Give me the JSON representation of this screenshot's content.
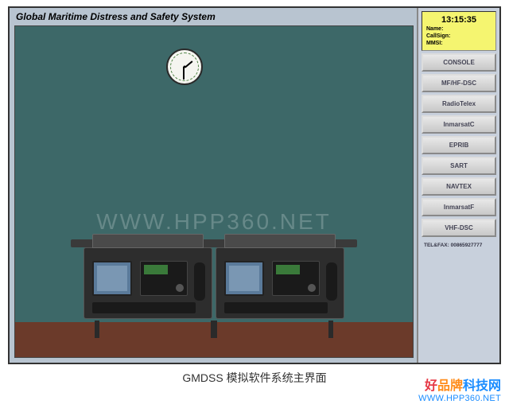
{
  "app": {
    "title": "Global Maritime Distress and Safety System"
  },
  "clock": {
    "time": "13:15:35"
  },
  "info": {
    "name_label": "Name:",
    "callsign_label": "CallSign:",
    "mmsi_label": "MMSI:"
  },
  "nav": {
    "items": [
      "CONSOLE",
      "MF/HF-DSC",
      "RadioTelex",
      "InmarsatC",
      "EPRIB",
      "SART",
      "NAVTEX",
      "InmarsatF",
      "VHF-DSC"
    ]
  },
  "telfax": {
    "label": "TEL&FAX:",
    "value": "00865927777"
  },
  "caption": "GMDSS 模拟软件系统主界面",
  "watermark": "WWW.HPP360.NET",
  "brand": {
    "cn_part1": "好",
    "cn_part2": "品牌",
    "cn_part3": "科技网",
    "url": "WWW.HPP360.NET"
  },
  "colors": {
    "scene_bg": "#3d6868",
    "panel_bg": "#c8d0dc",
    "timebox_bg": "#f5f570",
    "floor": "#6b3a2a"
  }
}
